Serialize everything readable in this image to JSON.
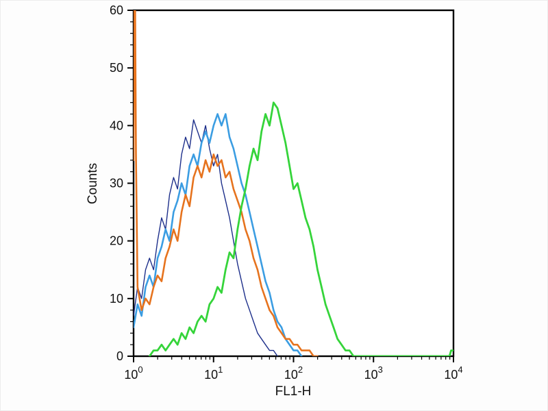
{
  "chart_data": {
    "type": "line",
    "subtype": "flow-cytometry-histogram-overlay",
    "title": "",
    "xlabel": "FL1-H",
    "ylabel": "Counts",
    "x_scale": "log10",
    "xlim_log": [
      0,
      4
    ],
    "ylim": [
      0,
      60
    ],
    "y_ticks": [
      0,
      10,
      20,
      30,
      40,
      50,
      60
    ],
    "y_minor_step": 2,
    "x_major_exponents": [
      0,
      1,
      2,
      3,
      4
    ],
    "grid": false,
    "legend_position": "none",
    "frame_color": "#000000",
    "background": "#ffffff",
    "series": [
      {
        "name": "dark-blue-control",
        "color": "#1c2e8a",
        "width": 1.4,
        "points": [
          [
            0.0,
            7
          ],
          [
            0.05,
            12
          ],
          [
            0.1,
            10
          ],
          [
            0.15,
            15
          ],
          [
            0.2,
            17
          ],
          [
            0.25,
            15
          ],
          [
            0.3,
            20
          ],
          [
            0.35,
            24
          ],
          [
            0.4,
            22
          ],
          [
            0.45,
            28
          ],
          [
            0.5,
            31
          ],
          [
            0.55,
            29
          ],
          [
            0.6,
            35
          ],
          [
            0.65,
            38
          ],
          [
            0.7,
            36
          ],
          [
            0.75,
            41
          ],
          [
            0.8,
            39
          ],
          [
            0.85,
            37
          ],
          [
            0.9,
            40
          ],
          [
            0.95,
            36
          ],
          [
            1.0,
            33
          ],
          [
            1.05,
            35
          ],
          [
            1.1,
            30
          ],
          [
            1.15,
            27
          ],
          [
            1.2,
            24
          ],
          [
            1.25,
            20
          ],
          [
            1.3,
            16
          ],
          [
            1.35,
            13
          ],
          [
            1.4,
            10
          ],
          [
            1.45,
            8
          ],
          [
            1.5,
            6
          ],
          [
            1.55,
            4
          ],
          [
            1.6,
            3
          ],
          [
            1.65,
            2
          ],
          [
            1.7,
            1
          ],
          [
            1.75,
            1
          ],
          [
            1.8,
            0
          ]
        ]
      },
      {
        "name": "light-blue",
        "color": "#3b9de2",
        "width": 2.6,
        "points": [
          [
            0.0,
            5
          ],
          [
            0.05,
            9
          ],
          [
            0.1,
            7
          ],
          [
            0.15,
            12
          ],
          [
            0.2,
            14
          ],
          [
            0.25,
            12
          ],
          [
            0.3,
            17
          ],
          [
            0.35,
            19
          ],
          [
            0.4,
            22
          ],
          [
            0.45,
            20
          ],
          [
            0.5,
            25
          ],
          [
            0.55,
            27
          ],
          [
            0.6,
            30
          ],
          [
            0.65,
            28
          ],
          [
            0.7,
            33
          ],
          [
            0.75,
            35
          ],
          [
            0.8,
            33
          ],
          [
            0.85,
            37
          ],
          [
            0.9,
            39
          ],
          [
            0.95,
            37
          ],
          [
            1.0,
            40
          ],
          [
            1.05,
            42
          ],
          [
            1.1,
            40
          ],
          [
            1.15,
            42
          ],
          [
            1.2,
            38
          ],
          [
            1.25,
            36
          ],
          [
            1.3,
            33
          ],
          [
            1.35,
            30
          ],
          [
            1.4,
            28
          ],
          [
            1.45,
            25
          ],
          [
            1.5,
            22
          ],
          [
            1.55,
            19
          ],
          [
            1.6,
            16
          ],
          [
            1.65,
            13
          ],
          [
            1.7,
            11
          ],
          [
            1.75,
            8
          ],
          [
            1.8,
            6
          ],
          [
            1.85,
            5
          ],
          [
            1.9,
            3
          ],
          [
            1.95,
            2
          ],
          [
            2.0,
            1
          ],
          [
            2.05,
            1
          ],
          [
            2.1,
            0
          ]
        ]
      },
      {
        "name": "orange",
        "color": "#e6731e",
        "width": 2.6,
        "points": [
          [
            0.0,
            34
          ],
          [
            0.01,
            60
          ],
          [
            0.02,
            60
          ],
          [
            0.03,
            35
          ],
          [
            0.05,
            12
          ],
          [
            0.1,
            8
          ],
          [
            0.15,
            10
          ],
          [
            0.2,
            9
          ],
          [
            0.25,
            12
          ],
          [
            0.3,
            14
          ],
          [
            0.35,
            13
          ],
          [
            0.4,
            17
          ],
          [
            0.45,
            19
          ],
          [
            0.5,
            22
          ],
          [
            0.55,
            20
          ],
          [
            0.6,
            25
          ],
          [
            0.65,
            28
          ],
          [
            0.7,
            26
          ],
          [
            0.75,
            31
          ],
          [
            0.8,
            33
          ],
          [
            0.85,
            31
          ],
          [
            0.9,
            34
          ],
          [
            0.95,
            32
          ],
          [
            1.0,
            35
          ],
          [
            1.05,
            33
          ],
          [
            1.1,
            34
          ],
          [
            1.15,
            31
          ],
          [
            1.2,
            32
          ],
          [
            1.25,
            29
          ],
          [
            1.3,
            27
          ],
          [
            1.35,
            25
          ],
          [
            1.4,
            22
          ],
          [
            1.45,
            20
          ],
          [
            1.5,
            17
          ],
          [
            1.55,
            15
          ],
          [
            1.6,
            12
          ],
          [
            1.65,
            10
          ],
          [
            1.7,
            8
          ],
          [
            1.75,
            7
          ],
          [
            1.8,
            5
          ],
          [
            1.85,
            4
          ],
          [
            1.9,
            3
          ],
          [
            1.95,
            3
          ],
          [
            2.0,
            2
          ],
          [
            2.05,
            2
          ],
          [
            2.1,
            1
          ],
          [
            2.15,
            1
          ],
          [
            2.2,
            1
          ],
          [
            2.25,
            0
          ],
          [
            2.3,
            0
          ]
        ]
      },
      {
        "name": "green",
        "color": "#35d43a",
        "width": 2.8,
        "points": [
          [
            0.2,
            0
          ],
          [
            0.25,
            1
          ],
          [
            0.3,
            1
          ],
          [
            0.35,
            2
          ],
          [
            0.4,
            1
          ],
          [
            0.45,
            2
          ],
          [
            0.5,
            3
          ],
          [
            0.55,
            2
          ],
          [
            0.6,
            4
          ],
          [
            0.65,
            3
          ],
          [
            0.7,
            5
          ],
          [
            0.75,
            4
          ],
          [
            0.8,
            6
          ],
          [
            0.85,
            7
          ],
          [
            0.9,
            6
          ],
          [
            0.95,
            9
          ],
          [
            1.0,
            10
          ],
          [
            1.05,
            12
          ],
          [
            1.1,
            11
          ],
          [
            1.15,
            15
          ],
          [
            1.2,
            18
          ],
          [
            1.25,
            17
          ],
          [
            1.3,
            22
          ],
          [
            1.35,
            26
          ],
          [
            1.4,
            29
          ],
          [
            1.45,
            33
          ],
          [
            1.5,
            36
          ],
          [
            1.55,
            34
          ],
          [
            1.6,
            39
          ],
          [
            1.65,
            42
          ],
          [
            1.7,
            40
          ],
          [
            1.75,
            44
          ],
          [
            1.8,
            43
          ],
          [
            1.85,
            40
          ],
          [
            1.9,
            37
          ],
          [
            1.95,
            33
          ],
          [
            2.0,
            29
          ],
          [
            2.05,
            30
          ],
          [
            2.1,
            27
          ],
          [
            2.15,
            24
          ],
          [
            2.2,
            22
          ],
          [
            2.25,
            19
          ],
          [
            2.3,
            15
          ],
          [
            2.35,
            12
          ],
          [
            2.4,
            9
          ],
          [
            2.45,
            7
          ],
          [
            2.5,
            5
          ],
          [
            2.55,
            3
          ],
          [
            2.6,
            2
          ],
          [
            2.65,
            1
          ],
          [
            2.7,
            1
          ],
          [
            2.75,
            0
          ],
          [
            3.0,
            0
          ],
          [
            3.5,
            0
          ],
          [
            3.95,
            0
          ],
          [
            3.97,
            1
          ],
          [
            4.0,
            1
          ]
        ]
      }
    ]
  }
}
